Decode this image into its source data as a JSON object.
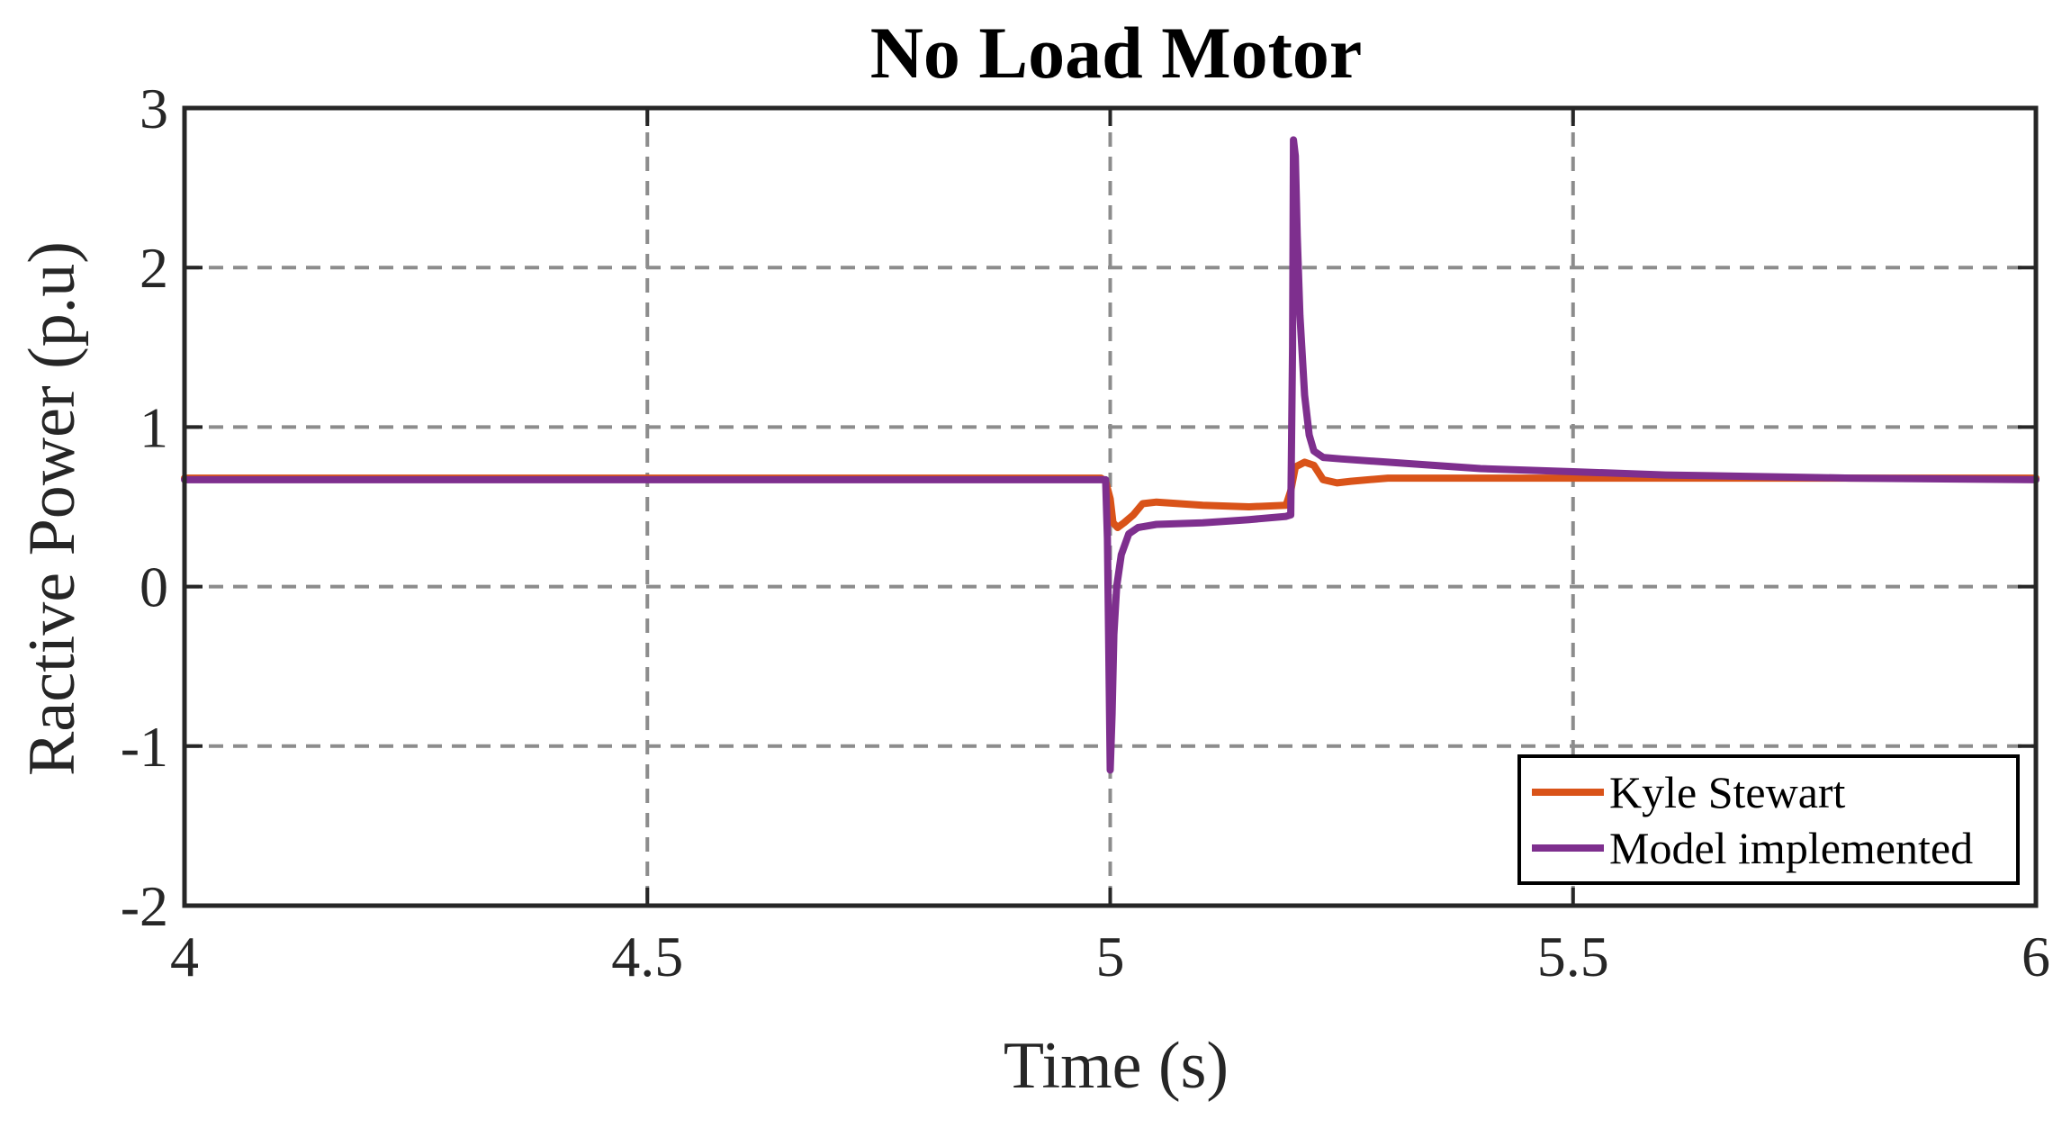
{
  "chart_data": {
    "type": "line",
    "title": "No Load Motor",
    "xlabel": "Time (s)",
    "ylabel": "Ractive Power (p.u)",
    "xlim": [
      4,
      6
    ],
    "ylim": [
      -2,
      3
    ],
    "xticks": [
      4,
      4.5,
      5,
      5.5,
      6
    ],
    "xtick_labels": [
      "4",
      "4.5",
      "5",
      "5.5",
      "6"
    ],
    "yticks": [
      -2,
      -1,
      0,
      1,
      2,
      3
    ],
    "ytick_labels": [
      "-2",
      "-1",
      "0",
      "1",
      "2",
      "3"
    ],
    "grid": true,
    "legend_position": "bottom-right",
    "series": [
      {
        "name": "Kyle Stewart",
        "color": "#D95319",
        "x": [
          4.0,
          4.9,
          4.99,
          4.995,
          5.0,
          5.003,
          5.008,
          5.015,
          5.025,
          5.035,
          5.05,
          5.1,
          5.15,
          5.19,
          5.195,
          5.2,
          5.21,
          5.22,
          5.23,
          5.245,
          5.26,
          5.3,
          5.4,
          5.6,
          6.0
        ],
        "y": [
          0.68,
          0.68,
          0.68,
          0.66,
          0.55,
          0.4,
          0.37,
          0.4,
          0.45,
          0.52,
          0.53,
          0.51,
          0.5,
          0.51,
          0.6,
          0.75,
          0.78,
          0.76,
          0.67,
          0.65,
          0.66,
          0.68,
          0.68,
          0.68,
          0.68
        ]
      },
      {
        "name": "Model implemented",
        "color": "#7E2F8E",
        "x": [
          4.0,
          4.995,
          4.997,
          5.0,
          5.002,
          5.004,
          5.007,
          5.012,
          5.02,
          5.03,
          5.05,
          5.1,
          5.15,
          5.19,
          5.195,
          5.197,
          5.198,
          5.2,
          5.202,
          5.205,
          5.21,
          5.215,
          5.22,
          5.23,
          5.25,
          5.3,
          5.4,
          5.5,
          5.6,
          5.8,
          6.0
        ],
        "y": [
          0.67,
          0.67,
          0.3,
          -1.15,
          -0.8,
          -0.3,
          0.0,
          0.2,
          0.33,
          0.37,
          0.39,
          0.4,
          0.42,
          0.44,
          0.45,
          1.5,
          2.8,
          2.7,
          2.2,
          1.7,
          1.2,
          0.95,
          0.85,
          0.81,
          0.8,
          0.78,
          0.74,
          0.72,
          0.7,
          0.68,
          0.67
        ]
      }
    ]
  }
}
